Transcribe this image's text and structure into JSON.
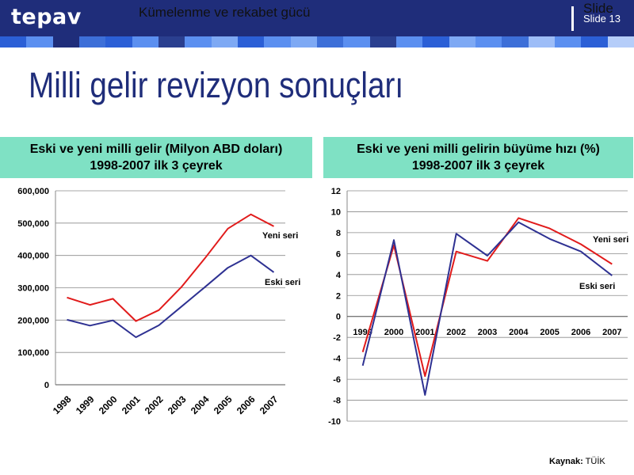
{
  "header": {
    "logo": "tepav",
    "topic": "Kümelenme ve rekabet gücü",
    "slide_word": "Slide",
    "slide_number": "Slide 13"
  },
  "page_title": "Milli gelir revizyon sonuçları",
  "source": {
    "label": "Kaynak:",
    "value": "TÜİK"
  },
  "colors": {
    "header": "#1f2d7a",
    "panel": "#7fe1c4",
    "yeni": "#e11b1b",
    "eski": "#2e3192"
  },
  "chart_data": [
    {
      "type": "line",
      "title_line1": "Eski ve yeni milli gelir (Milyon ABD doları)",
      "title_line2": "1998-2007 ilk 3 çeyrek",
      "categories": [
        "1998",
        "1999",
        "2000",
        "2001",
        "2002",
        "2003",
        "2004",
        "2005",
        "2006",
        "2007"
      ],
      "ylim": [
        0,
        600000
      ],
      "yticks": [
        0,
        100000,
        200000,
        300000,
        400000,
        500000,
        600000
      ],
      "ytick_labels": [
        "0",
        "100,000",
        "200,000",
        "300,000",
        "400,000",
        "500,000",
        "600,000"
      ],
      "grid": true,
      "series": [
        {
          "name": "Yeni seri",
          "color": "#e11b1b",
          "values": [
            270000,
            247000,
            266000,
            197000,
            231000,
            304000,
            391000,
            483000,
            527000,
            490000
          ]
        },
        {
          "name": "Eski seri",
          "color": "#2e3192",
          "values": [
            201000,
            183000,
            199000,
            147000,
            184000,
            243000,
            302000,
            362000,
            400000,
            348000
          ]
        }
      ]
    },
    {
      "type": "line",
      "title_line1": "Eski ve yeni milli gelirin büyüme hızı  (%)",
      "title_line2": "1998-2007 ilk 3 çeyrek",
      "categories": [
        "1999",
        "2000",
        "2001",
        "2002",
        "2003",
        "2004",
        "2005",
        "2006",
        "2007"
      ],
      "ylim": [
        -10,
        12
      ],
      "yticks": [
        -10,
        -8,
        -6,
        -4,
        -2,
        0,
        2,
        4,
        6,
        8,
        10,
        12
      ],
      "ytick_labels": [
        "-10",
        "-8",
        "-6",
        "-4",
        "-2",
        "0",
        "2",
        "4",
        "6",
        "8",
        "10",
        "12"
      ],
      "grid": true,
      "series": [
        {
          "name": "Yeni seri",
          "color": "#e11b1b",
          "values": [
            -3.4,
            6.8,
            -5.7,
            6.2,
            5.3,
            9.4,
            8.4,
            6.9,
            5.0
          ]
        },
        {
          "name": "Eski seri",
          "color": "#2e3192",
          "values": [
            -4.7,
            7.3,
            -7.5,
            7.9,
            5.8,
            9.0,
            7.4,
            6.2,
            3.9
          ]
        }
      ]
    }
  ]
}
